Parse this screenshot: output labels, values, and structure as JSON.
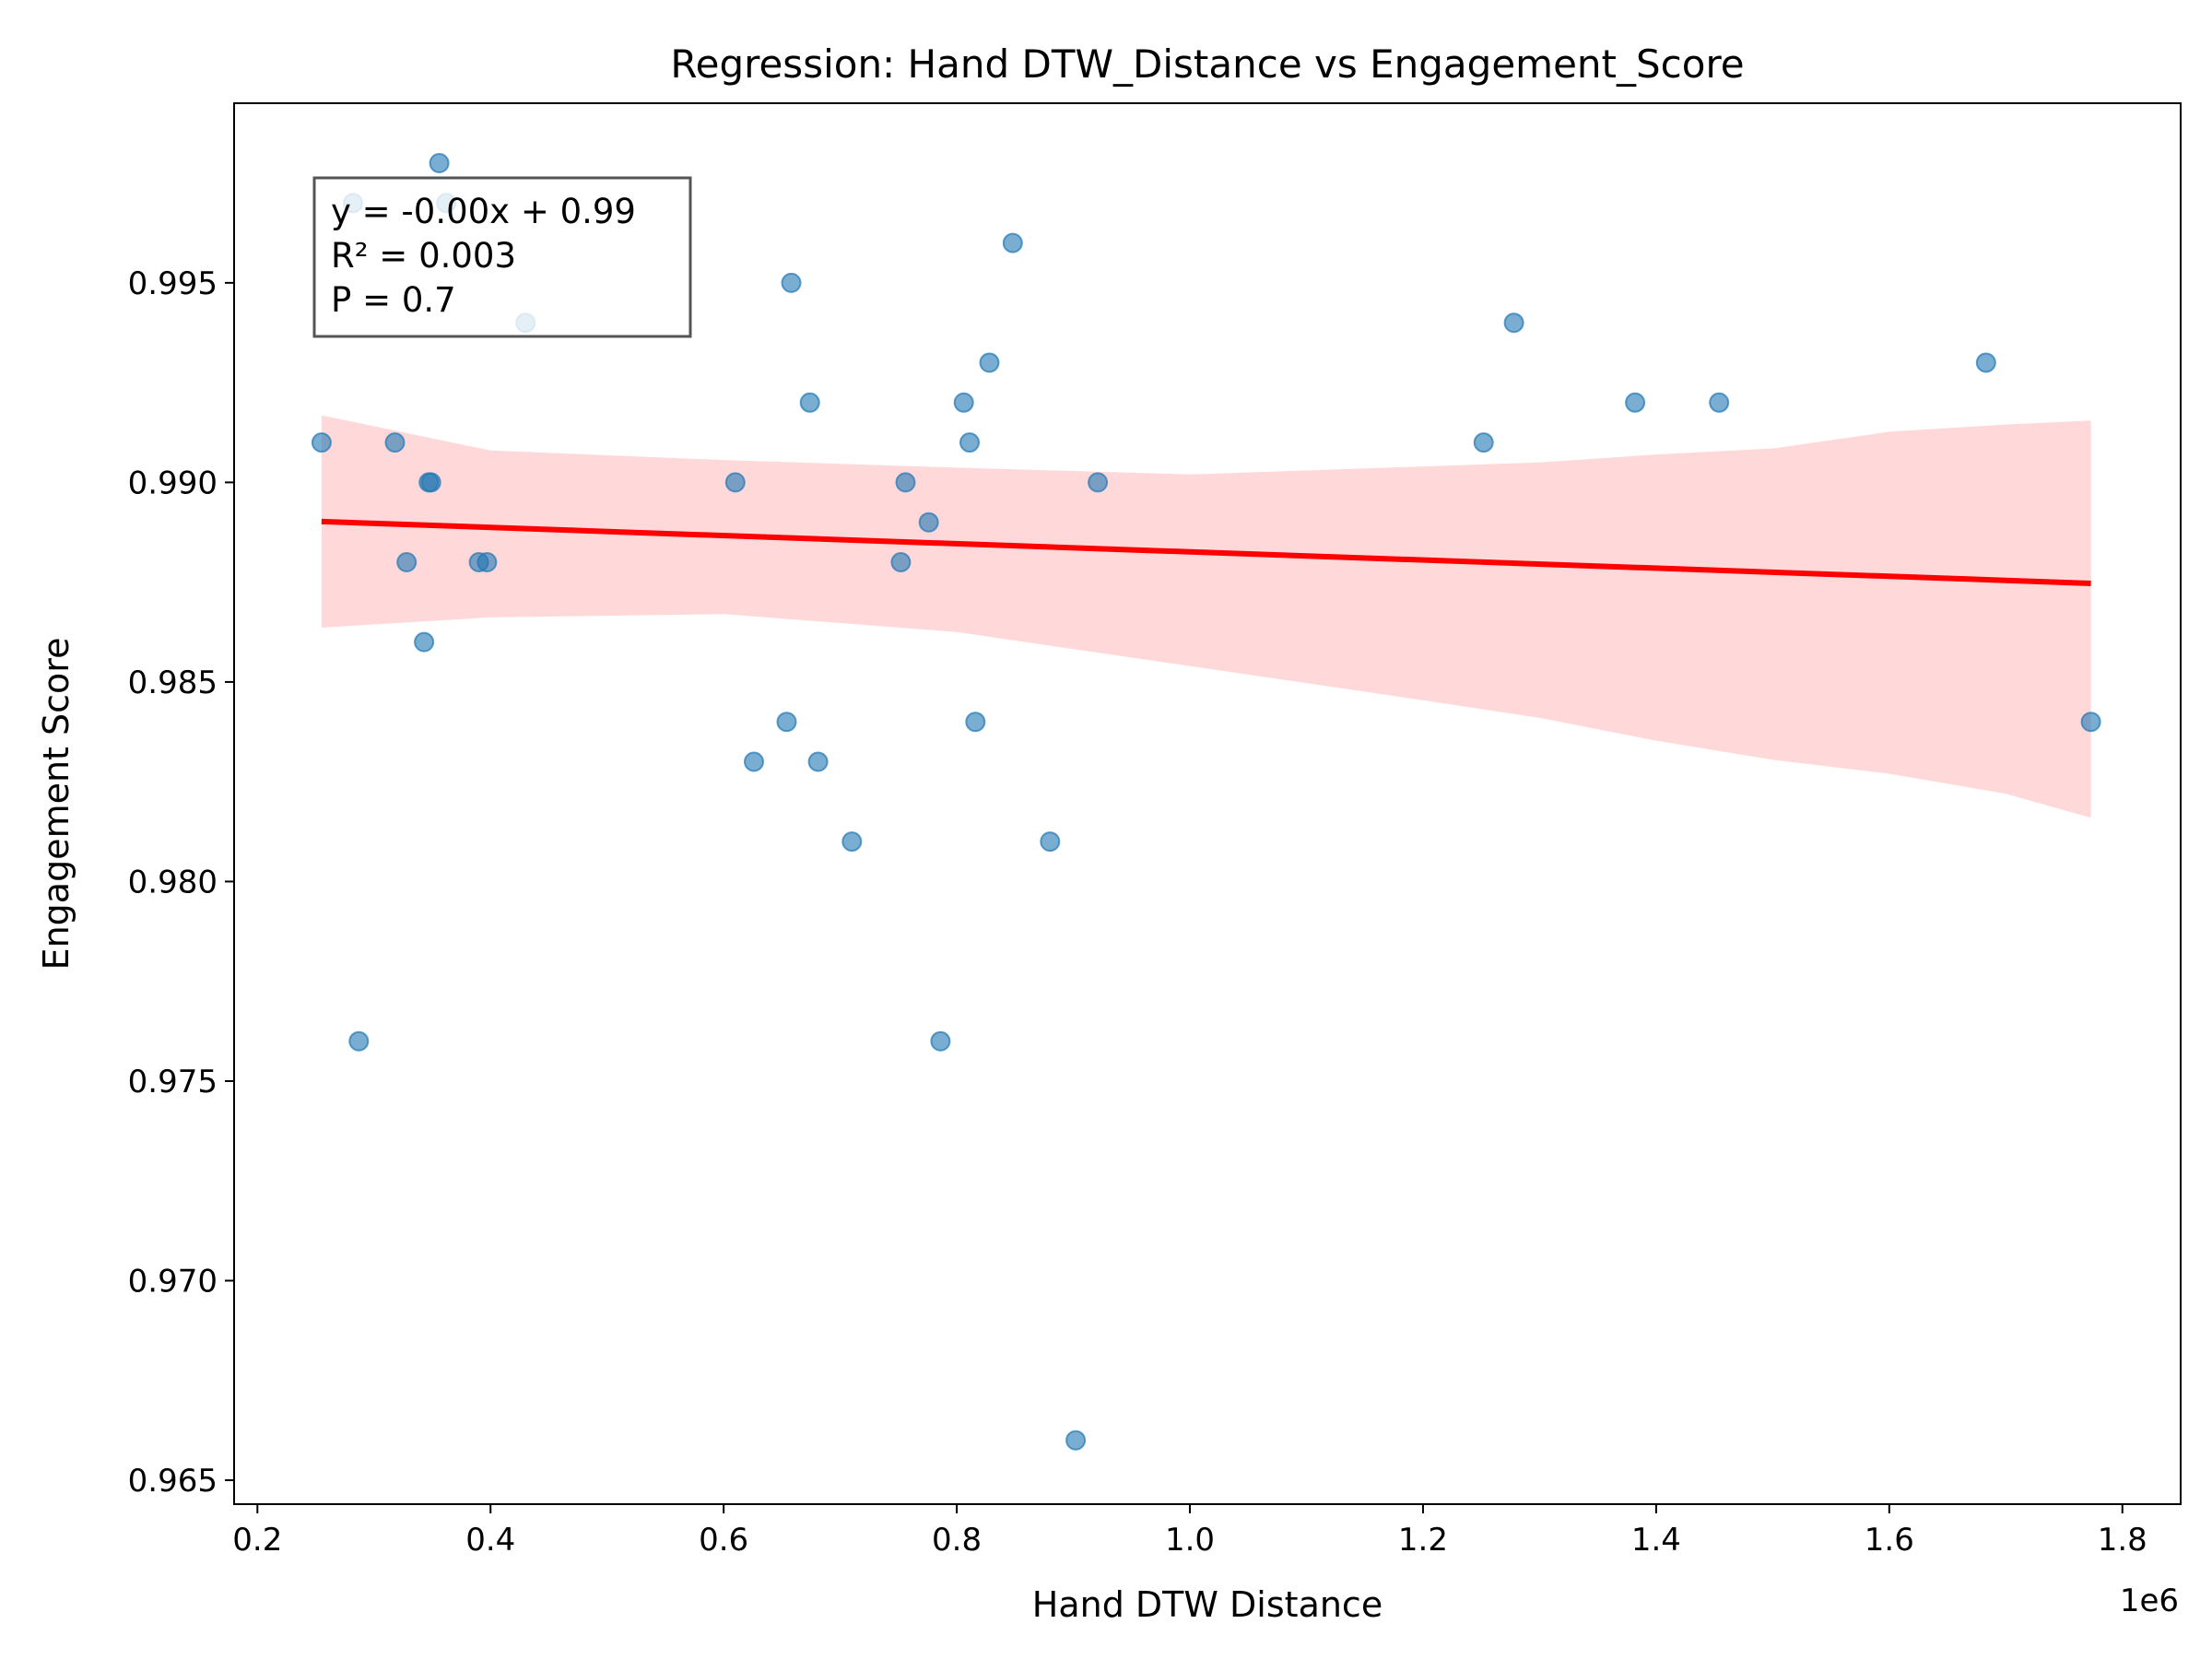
{
  "chart_data": {
    "type": "scatter",
    "title": "Regression: Hand DTW_Distance vs Engagement_Score",
    "xlabel": "Hand DTW Distance",
    "ylabel": "Engagement Score",
    "x_offset_label": "1e6",
    "xlim": [
      0.18,
      1.85
    ],
    "ylim": [
      0.9644,
      0.9995
    ],
    "x_ticks": [
      0.2,
      0.4,
      0.6,
      0.8,
      1.0,
      1.2,
      1.4,
      1.6,
      1.8
    ],
    "x_tick_labels": [
      "0.2",
      "0.4",
      "0.6",
      "0.8",
      "1.0",
      "1.2",
      "1.4",
      "1.6",
      "1.8"
    ],
    "y_ticks": [
      0.965,
      0.97,
      0.975,
      0.98,
      0.985,
      0.99,
      0.995
    ],
    "y_tick_labels": [
      "0.965",
      "0.970",
      "0.975",
      "0.980",
      "0.985",
      "0.990",
      "0.995"
    ],
    "grid": false,
    "colors": {
      "points": "#1f77b4",
      "fit_line": "#ff0000",
      "confidence_band": "#ffb3b3"
    },
    "points": [
      {
        "x": 0.255,
        "y": 0.991
      },
      {
        "x": 0.282,
        "y": 0.997
      },
      {
        "x": 0.287,
        "y": 0.976
      },
      {
        "x": 0.318,
        "y": 0.991
      },
      {
        "x": 0.328,
        "y": 0.988
      },
      {
        "x": 0.343,
        "y": 0.986
      },
      {
        "x": 0.347,
        "y": 0.99
      },
      {
        "x": 0.349,
        "y": 0.99
      },
      {
        "x": 0.356,
        "y": 0.998
      },
      {
        "x": 0.362,
        "y": 0.997
      },
      {
        "x": 0.39,
        "y": 0.988
      },
      {
        "x": 0.397,
        "y": 0.988
      },
      {
        "x": 0.43,
        "y": 0.994
      },
      {
        "x": 0.61,
        "y": 0.99
      },
      {
        "x": 0.626,
        "y": 0.983
      },
      {
        "x": 0.654,
        "y": 0.984
      },
      {
        "x": 0.658,
        "y": 0.995
      },
      {
        "x": 0.674,
        "y": 0.992
      },
      {
        "x": 0.681,
        "y": 0.983
      },
      {
        "x": 0.71,
        "y": 0.981
      },
      {
        "x": 0.752,
        "y": 0.988
      },
      {
        "x": 0.756,
        "y": 0.99
      },
      {
        "x": 0.776,
        "y": 0.989
      },
      {
        "x": 0.786,
        "y": 0.976
      },
      {
        "x": 0.806,
        "y": 0.992
      },
      {
        "x": 0.811,
        "y": 0.991
      },
      {
        "x": 0.816,
        "y": 0.984
      },
      {
        "x": 0.828,
        "y": 0.993
      },
      {
        "x": 0.848,
        "y": 0.996
      },
      {
        "x": 0.88,
        "y": 0.981
      },
      {
        "x": 0.902,
        "y": 0.966
      },
      {
        "x": 0.921,
        "y": 0.99
      },
      {
        "x": 1.252,
        "y": 0.991
      },
      {
        "x": 1.278,
        "y": 0.994
      },
      {
        "x": 1.382,
        "y": 0.992
      },
      {
        "x": 1.454,
        "y": 0.992
      },
      {
        "x": 1.683,
        "y": 0.993
      },
      {
        "x": 1.773,
        "y": 0.984
      }
    ],
    "regression_line": {
      "x": [
        0.255,
        1.773
      ],
      "y": [
        0.98902,
        0.98747
      ]
    },
    "confidence_band": {
      "x": [
        0.255,
        0.4,
        0.6,
        0.8,
        1.0,
        1.2,
        1.3,
        1.4,
        1.5,
        1.6,
        1.7,
        1.773
      ],
      "upper": [
        0.99168,
        0.9908,
        0.99056,
        0.99037,
        0.9902,
        0.9904,
        0.9905,
        0.9907,
        0.99085,
        0.99127,
        0.99145,
        0.99155
      ],
      "lower": [
        0.98636,
        0.98662,
        0.9867,
        0.98625,
        0.9854,
        0.98454,
        0.9841,
        0.98353,
        0.98305,
        0.9827,
        0.9822,
        0.9816
      ]
    },
    "annotation": {
      "lines": [
        "y = -0.00x + 0.99",
        "R² = 0.003",
        "P = 0.7"
      ],
      "position": "top-left"
    }
  }
}
